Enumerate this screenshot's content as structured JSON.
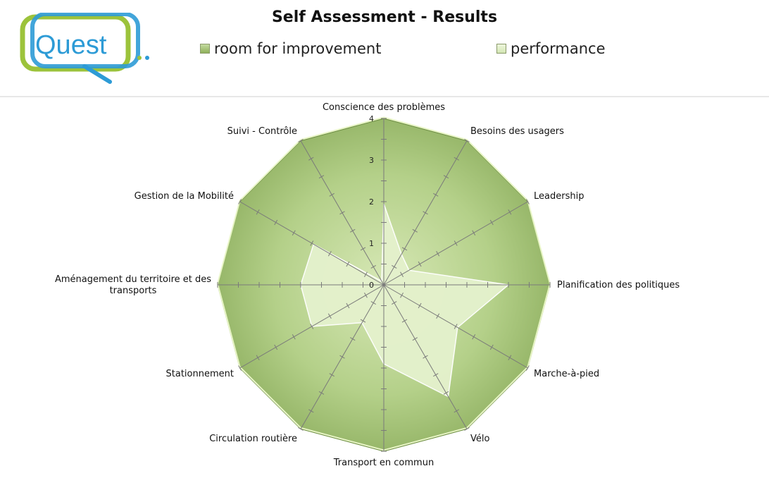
{
  "logo": {
    "text": "Quest",
    "primary_color": "#2d9bd6",
    "secondary_color": "#9cc33b"
  },
  "chart_data": {
    "type": "radar",
    "title": "Self Assessment - Results",
    "legend_position": "top",
    "categories": [
      "Conscience des problèmes",
      "Besoins des usagers",
      "Leadership",
      "Planification des politiques",
      "Marche-à-pied",
      "Vélo",
      "Transport en commun",
      "Circulation routière",
      "Stationnement",
      "Aménagement du territoire et des transports",
      "Gestion de la Mobilité",
      "Suivi - Contrôle"
    ],
    "rlim": [
      0,
      4
    ],
    "ticks": [
      "0",
      "1",
      "2",
      "3",
      "4"
    ],
    "series": [
      {
        "name": "room for improvement",
        "values": [
          4,
          4,
          4,
          4,
          4,
          4,
          4,
          4,
          4,
          4,
          4,
          4
        ],
        "color": "#9dbb6a"
      },
      {
        "name": "performance",
        "values": [
          1.95,
          0.85,
          0.7,
          3.0,
          2.05,
          3.1,
          1.9,
          1.05,
          2.0,
          2.0,
          1.95,
          0.1
        ],
        "color": "#e6f2cf"
      }
    ]
  }
}
